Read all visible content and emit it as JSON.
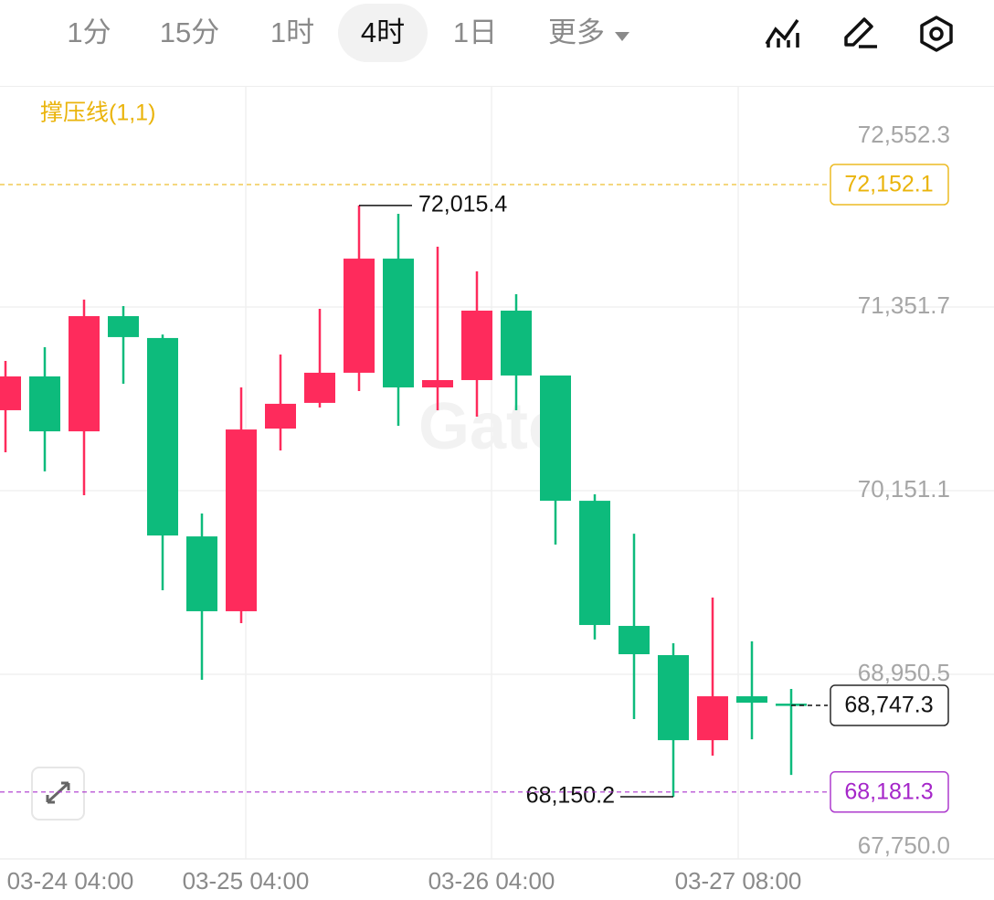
{
  "toolbar": {
    "tabs": [
      "1分",
      "15分",
      "1时",
      "4时",
      "1日",
      "更多"
    ],
    "active": 3
  },
  "chart_data": {
    "type": "candlestick",
    "indicator": "撑压线(1,1)",
    "watermark": "Gate",
    "x_axis_labels": [
      "03-24 04:00",
      "03-25 04:00",
      "03-26 04:00",
      "03-27 08:00"
    ],
    "open": [
      70677,
      70898,
      70539,
      71292,
      71149,
      69852,
      69363,
      70557,
      70725,
      70922,
      71668,
      70826,
      70874,
      71328,
      70904,
      70085,
      69267,
      69076,
      68520,
      68807,
      68759
    ],
    "high": [
      70999,
      71089,
      71400,
      71358,
      71172,
      70002,
      70826,
      71041,
      71340,
      72015.4,
      71961,
      71746,
      71585,
      71435,
      70904,
      70127,
      69870,
      69154,
      69452,
      69166,
      68855
    ],
    "low": [
      70402,
      70277,
      70121,
      70850,
      69500,
      68915,
      69285,
      70414,
      70695,
      70802,
      70575,
      70677,
      70635,
      70677,
      69799,
      69178,
      68658,
      68150.2,
      68419,
      68526,
      68293
    ],
    "close": [
      70898,
      70539,
      71292,
      71155,
      69858,
      69363,
      70551,
      70719,
      70922,
      71668,
      70826,
      70874,
      71328,
      70904,
      70085,
      69273,
      69082,
      68520,
      68807,
      68765,
      68747.3
    ],
    "up_color": "#fe2b5c",
    "down_color": "#0dbb7c",
    "ylim": [
      67750.0,
      72552.3
    ],
    "yticks": [
      {
        "value": 72552.3,
        "label": "72,552.3"
      },
      {
        "value": 71351.7,
        "label": "71,351.7"
      },
      {
        "value": 70151.1,
        "label": "70,151.1"
      },
      {
        "value": 68950.5,
        "label": "68,950.5"
      },
      {
        "value": 67750.0,
        "label": "67,750.0"
      }
    ],
    "grid": true,
    "price_lines": [
      {
        "value": 72152.1,
        "label": "72,152.1",
        "color": "#eab40c",
        "extend": "full"
      },
      {
        "value": 68747.3,
        "label": "68,747.3",
        "color": "#111111",
        "extend": "last"
      },
      {
        "value": 68181.3,
        "label": "68,181.3",
        "color": "#a526c9",
        "extend": "full"
      }
    ],
    "high_label": {
      "value": 72015.4,
      "label": "72,015.4"
    },
    "low_label": {
      "value": 68150.2,
      "label": "68,150.2"
    }
  }
}
